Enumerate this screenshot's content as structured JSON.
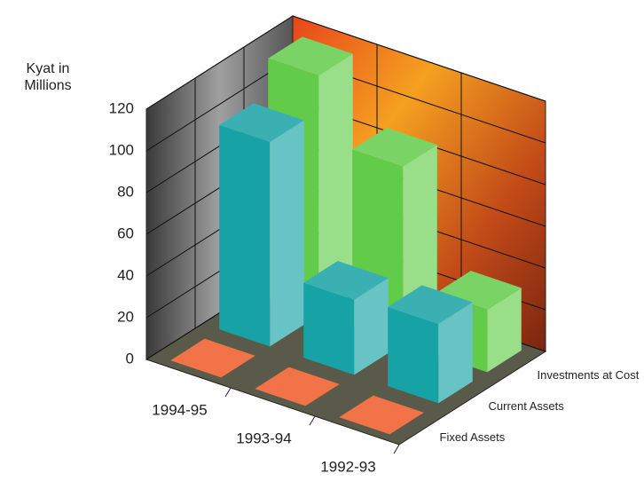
{
  "chart_data": {
    "type": "bar3d",
    "y_label": "Kyat in Millions",
    "categories": [
      "1994-95",
      "1993-94",
      "1992-93"
    ],
    "series": [
      {
        "name": "Fixed Assets",
        "color": "#f05a28",
        "values": [
          0,
          0,
          0
        ]
      },
      {
        "name": "Current Assets",
        "color": "#17a2a6",
        "values": [
          98,
          36,
          38
        ]
      },
      {
        "name": "Investments at Cost",
        "color": "#62cc4a",
        "values": [
          115,
          85,
          30
        ]
      }
    ],
    "ylim": [
      0,
      120
    ],
    "yticks": [
      0,
      20,
      40,
      60,
      80,
      100,
      120
    ],
    "grid": true
  }
}
